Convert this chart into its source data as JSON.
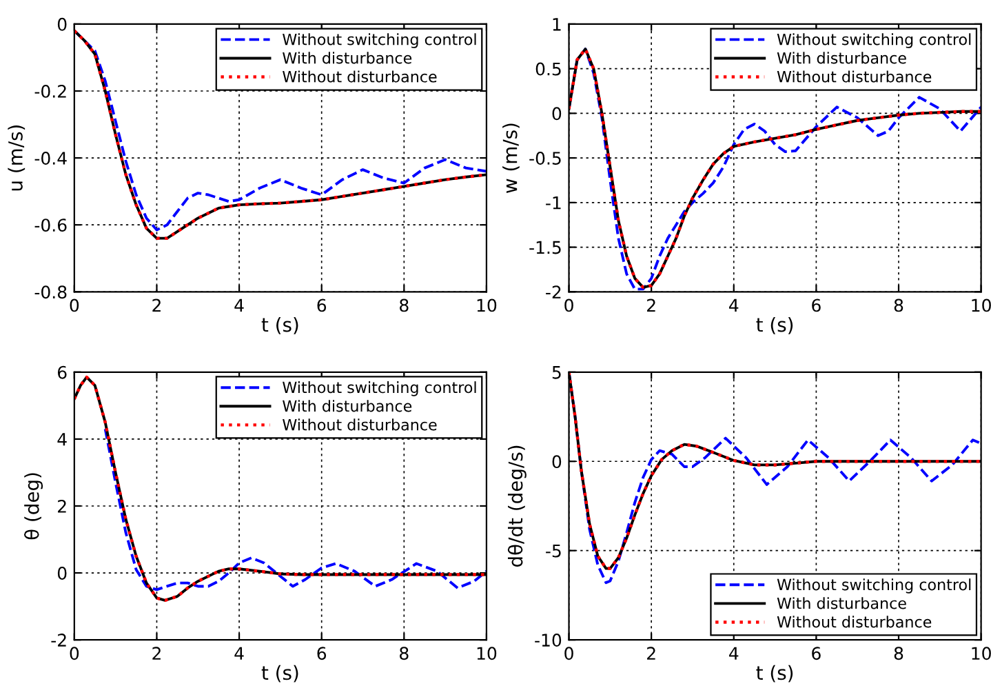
{
  "chart_data": [
    {
      "type": "line",
      "xlabel": "t (s)",
      "ylabel": "u (m/s)",
      "xlim": [
        0,
        10
      ],
      "ylim": [
        -0.8,
        0
      ],
      "xticks": [
        0,
        2,
        4,
        6,
        8,
        10
      ],
      "yticks": [
        -0.8,
        -0.6,
        -0.4,
        -0.2,
        0
      ],
      "grid": true,
      "legend": "top right",
      "series": [
        {
          "name": "Without switching control",
          "color": "#0000ff",
          "line_style": "dashed",
          "x": [
            0,
            0.25,
            0.5,
            0.75,
            1.0,
            1.25,
            1.5,
            1.75,
            2.0,
            2.25,
            2.5,
            2.75,
            3.0,
            3.25,
            3.5,
            3.75,
            4.0,
            4.5,
            5,
            5.5,
            6,
            6.5,
            7,
            7.5,
            8,
            8.5,
            9,
            9.5,
            10
          ],
          "values": [
            -0.02,
            -0.05,
            -0.08,
            -0.17,
            -0.29,
            -0.41,
            -0.51,
            -0.58,
            -0.615,
            -0.6,
            -0.56,
            -0.52,
            -0.505,
            -0.51,
            -0.52,
            -0.53,
            -0.525,
            -0.49,
            -0.465,
            -0.49,
            -0.51,
            -0.465,
            -0.435,
            -0.46,
            -0.475,
            -0.43,
            -0.405,
            -0.43,
            -0.44
          ]
        },
        {
          "name": "With disturbance",
          "color": "#000000",
          "line_style": "solid",
          "x": [
            0,
            0.25,
            0.5,
            0.75,
            1.0,
            1.25,
            1.5,
            1.75,
            2.0,
            2.25,
            2.5,
            2.75,
            3.0,
            3.25,
            3.5,
            3.75,
            4.0,
            4.5,
            5,
            5.5,
            6,
            6.5,
            7,
            7.5,
            8,
            8.5,
            9,
            9.5,
            10
          ],
          "values": [
            -0.02,
            -0.05,
            -0.09,
            -0.2,
            -0.33,
            -0.45,
            -0.54,
            -0.61,
            -0.64,
            -0.64,
            -0.62,
            -0.6,
            -0.58,
            -0.565,
            -0.55,
            -0.545,
            -0.54,
            -0.537,
            -0.535,
            -0.53,
            -0.525,
            -0.515,
            -0.505,
            -0.495,
            -0.485,
            -0.475,
            -0.465,
            -0.457,
            -0.45
          ]
        },
        {
          "name": "Without disturbance",
          "color": "#ff0000",
          "line_style": "dotted",
          "x": [
            0,
            0.25,
            0.5,
            0.75,
            1.0,
            1.25,
            1.5,
            1.75,
            2.0,
            2.25,
            2.5,
            2.75,
            3.0,
            3.25,
            3.5,
            3.75,
            4.0,
            4.5,
            5,
            5.5,
            6,
            6.5,
            7,
            7.5,
            8,
            8.5,
            9,
            9.5,
            10
          ],
          "values": [
            -0.02,
            -0.05,
            -0.09,
            -0.2,
            -0.33,
            -0.45,
            -0.54,
            -0.61,
            -0.64,
            -0.64,
            -0.62,
            -0.6,
            -0.58,
            -0.565,
            -0.55,
            -0.545,
            -0.54,
            -0.537,
            -0.535,
            -0.53,
            -0.525,
            -0.515,
            -0.505,
            -0.495,
            -0.485,
            -0.475,
            -0.465,
            -0.457,
            -0.45
          ]
        }
      ]
    },
    {
      "type": "line",
      "xlabel": "t (s)",
      "ylabel": "w (m/s)",
      "xlim": [
        0,
        10
      ],
      "ylim": [
        -2,
        1
      ],
      "xticks": [
        0,
        2,
        4,
        6,
        8,
        10
      ],
      "yticks": [
        -2,
        -1.5,
        -1,
        -0.5,
        0,
        0.5,
        1
      ],
      "grid": true,
      "legend": "top right",
      "series": [
        {
          "name": "Without switching control",
          "color": "#0000ff",
          "line_style": "dashed",
          "x": [
            0,
            0.2,
            0.4,
            0.6,
            0.8,
            1.0,
            1.2,
            1.4,
            1.6,
            1.8,
            2.0,
            2.2,
            2.4,
            2.6,
            2.8,
            3.0,
            3.25,
            3.5,
            3.75,
            4,
            4.25,
            4.5,
            4.75,
            5,
            5.25,
            5.5,
            6,
            6.5,
            7,
            7.5,
            7.75,
            8,
            8.5,
            9,
            9.5,
            10
          ],
          "values": [
            0.05,
            0.6,
            0.72,
            0.45,
            -0.05,
            -0.75,
            -1.4,
            -1.8,
            -1.97,
            -1.97,
            -1.85,
            -1.6,
            -1.4,
            -1.25,
            -1.1,
            -1.0,
            -0.9,
            -0.78,
            -0.6,
            -0.35,
            -0.18,
            -0.12,
            -0.2,
            -0.35,
            -0.43,
            -0.42,
            -0.15,
            0.07,
            -0.05,
            -0.25,
            -0.2,
            -0.05,
            0.18,
            0.05,
            -0.2,
            0.07
          ]
        },
        {
          "name": "With disturbance",
          "color": "#000000",
          "line_style": "solid",
          "x": [
            0,
            0.2,
            0.4,
            0.6,
            0.8,
            1.0,
            1.2,
            1.4,
            1.6,
            1.8,
            2.0,
            2.2,
            2.4,
            2.6,
            2.8,
            3.0,
            3.25,
            3.5,
            3.75,
            4,
            4.5,
            5,
            5.5,
            6,
            6.5,
            7,
            7.5,
            8,
            8.5,
            9,
            9.5,
            10
          ],
          "values": [
            0.05,
            0.6,
            0.72,
            0.5,
            0,
            -0.6,
            -1.2,
            -1.6,
            -1.85,
            -1.95,
            -1.93,
            -1.8,
            -1.6,
            -1.4,
            -1.15,
            -0.95,
            -0.75,
            -0.57,
            -0.45,
            -0.37,
            -0.32,
            -0.28,
            -0.24,
            -0.18,
            -0.13,
            -0.08,
            -0.05,
            -0.02,
            0,
            0.01,
            0.02,
            0.02
          ]
        },
        {
          "name": "Without disturbance",
          "color": "#ff0000",
          "line_style": "dotted",
          "x": [
            0,
            0.2,
            0.4,
            0.6,
            0.8,
            1.0,
            1.2,
            1.4,
            1.6,
            1.8,
            2.0,
            2.2,
            2.4,
            2.6,
            2.8,
            3.0,
            3.25,
            3.5,
            3.75,
            4,
            4.5,
            5,
            5.5,
            6,
            6.5,
            7,
            7.5,
            8,
            8.5,
            9,
            9.5,
            10
          ],
          "values": [
            0.05,
            0.6,
            0.72,
            0.5,
            0,
            -0.6,
            -1.2,
            -1.6,
            -1.85,
            -1.95,
            -1.93,
            -1.8,
            -1.6,
            -1.4,
            -1.15,
            -0.95,
            -0.75,
            -0.57,
            -0.45,
            -0.37,
            -0.32,
            -0.28,
            -0.24,
            -0.18,
            -0.13,
            -0.08,
            -0.05,
            -0.02,
            0,
            0.01,
            0.02,
            0.02
          ]
        }
      ]
    },
    {
      "type": "line",
      "xlabel": "t (s)",
      "ylabel": "θ (deg)",
      "xlim": [
        0,
        10
      ],
      "ylim": [
        -2,
        6
      ],
      "xticks": [
        0,
        2,
        4,
        6,
        8,
        10
      ],
      "yticks": [
        -2,
        0,
        2,
        4,
        6
      ],
      "grid": true,
      "legend": "top right",
      "series": [
        {
          "name": "Without switching control",
          "color": "#0000ff",
          "line_style": "dashed",
          "x": [
            0.75,
            1.0,
            1.25,
            1.5,
            1.75,
            2.0,
            2.25,
            2.5,
            2.75,
            3.0,
            3.25,
            3.5,
            3.75,
            4,
            4.3,
            4.6,
            5,
            5.3,
            5.6,
            6,
            6.35,
            6.8,
            7.3,
            7.7,
            8.3,
            8.8,
            9.3,
            9.7,
            10
          ],
          "values": [
            4.3,
            2.7,
            1.2,
            0.1,
            -0.4,
            -0.5,
            -0.4,
            -0.3,
            -0.3,
            -0.4,
            -0.4,
            -0.25,
            0,
            0.3,
            0.45,
            0.3,
            -0.1,
            -0.4,
            -0.2,
            0.15,
            0.28,
            0.05,
            -0.4,
            -0.2,
            0.28,
            0.05,
            -0.45,
            -0.25,
            0.05
          ]
        },
        {
          "name": "With disturbance",
          "color": "#000000",
          "line_style": "solid",
          "x": [
            0,
            0.15,
            0.3,
            0.5,
            0.75,
            1.0,
            1.25,
            1.5,
            1.75,
            2.0,
            2.2,
            2.5,
            2.75,
            3.0,
            3.5,
            3.75,
            4,
            4.5,
            5,
            5.5,
            6,
            7,
            8,
            9,
            10
          ],
          "values": [
            5.2,
            5.6,
            5.85,
            5.6,
            4.5,
            3.0,
            1.6,
            0.5,
            -0.3,
            -0.75,
            -0.82,
            -0.7,
            -0.45,
            -0.25,
            0.05,
            0.12,
            0.12,
            0.05,
            -0.03,
            -0.05,
            -0.05,
            -0.05,
            -0.05,
            -0.05,
            -0.05
          ]
        },
        {
          "name": "Without disturbance",
          "color": "#ff0000",
          "line_style": "dotted",
          "x": [
            0,
            0.15,
            0.3,
            0.5,
            0.75,
            1.0,
            1.25,
            1.5,
            1.75,
            2.0,
            2.2,
            2.5,
            2.75,
            3.0,
            3.5,
            3.75,
            4,
            4.5,
            5,
            5.5,
            6,
            7,
            8,
            9,
            10
          ],
          "values": [
            5.2,
            5.6,
            5.85,
            5.6,
            4.5,
            3.0,
            1.6,
            0.5,
            -0.3,
            -0.75,
            -0.82,
            -0.7,
            -0.45,
            -0.25,
            0.05,
            0.12,
            0.12,
            0.05,
            -0.03,
            -0.05,
            -0.05,
            -0.05,
            -0.05,
            -0.05,
            -0.05
          ]
        }
      ]
    },
    {
      "type": "line",
      "xlabel": "t (s)",
      "ylabel": "dθ/dt (deg/s)",
      "xlim": [
        0,
        10
      ],
      "ylim": [
        -10,
        5
      ],
      "xticks": [
        0,
        2,
        4,
        6,
        8,
        10
      ],
      "yticks": [
        -10,
        -5,
        0,
        5
      ],
      "grid": true,
      "legend": "bottom right",
      "series": [
        {
          "name": "Without switching control",
          "color": "#0000ff",
          "line_style": "dashed",
          "x": [
            0,
            0.15,
            0.3,
            0.5,
            0.7,
            0.9,
            1.0,
            1.2,
            1.4,
            1.6,
            1.8,
            2.0,
            2.2,
            2.5,
            2.8,
            3.0,
            3.3,
            3.8,
            4.3,
            4.8,
            5.3,
            5.8,
            6.3,
            6.8,
            7.3,
            7.8,
            8.3,
            8.8,
            9.3,
            9.8,
            10
          ],
          "values": [
            5,
            2.5,
            -0.5,
            -3.8,
            -5.8,
            -6.8,
            -6.7,
            -5.6,
            -4.0,
            -2.3,
            -0.9,
            0.1,
            0.6,
            0.4,
            -0.3,
            -0.3,
            0.2,
            1.3,
            0.2,
            -1.3,
            -0.3,
            1.2,
            0.2,
            -1.1,
            0,
            1.2,
            0.2,
            -1.1,
            -0.2,
            1.2,
            1.0
          ]
        },
        {
          "name": "With disturbance",
          "color": "#000000",
          "line_style": "solid",
          "x": [
            0,
            0.15,
            0.3,
            0.5,
            0.7,
            0.9,
            1.0,
            1.2,
            1.4,
            1.6,
            1.8,
            2.0,
            2.25,
            2.5,
            2.8,
            3.1,
            3.5,
            4,
            4.5,
            5,
            5.5,
            6,
            7,
            8,
            9,
            10
          ],
          "values": [
            5,
            2.5,
            -0.5,
            -3.5,
            -5.3,
            -6.0,
            -6.0,
            -5.4,
            -4.3,
            -3.0,
            -1.8,
            -0.8,
            0.1,
            0.6,
            0.95,
            0.85,
            0.5,
            0.05,
            -0.2,
            -0.2,
            -0.1,
            0,
            0,
            0,
            0,
            0
          ]
        },
        {
          "name": "Without disturbance",
          "color": "#ff0000",
          "line_style": "dotted",
          "x": [
            0,
            0.15,
            0.3,
            0.5,
            0.7,
            0.9,
            1.0,
            1.2,
            1.4,
            1.6,
            1.8,
            2.0,
            2.25,
            2.5,
            2.8,
            3.1,
            3.5,
            4,
            4.5,
            5,
            5.5,
            6,
            7,
            8,
            9,
            10
          ],
          "values": [
            5,
            2.5,
            -0.5,
            -3.5,
            -5.3,
            -6.0,
            -6.0,
            -5.4,
            -4.3,
            -3.0,
            -1.8,
            -0.8,
            0.1,
            0.6,
            0.95,
            0.85,
            0.5,
            0.05,
            -0.2,
            -0.2,
            -0.1,
            0,
            0,
            0,
            0,
            0
          ]
        }
      ]
    }
  ]
}
